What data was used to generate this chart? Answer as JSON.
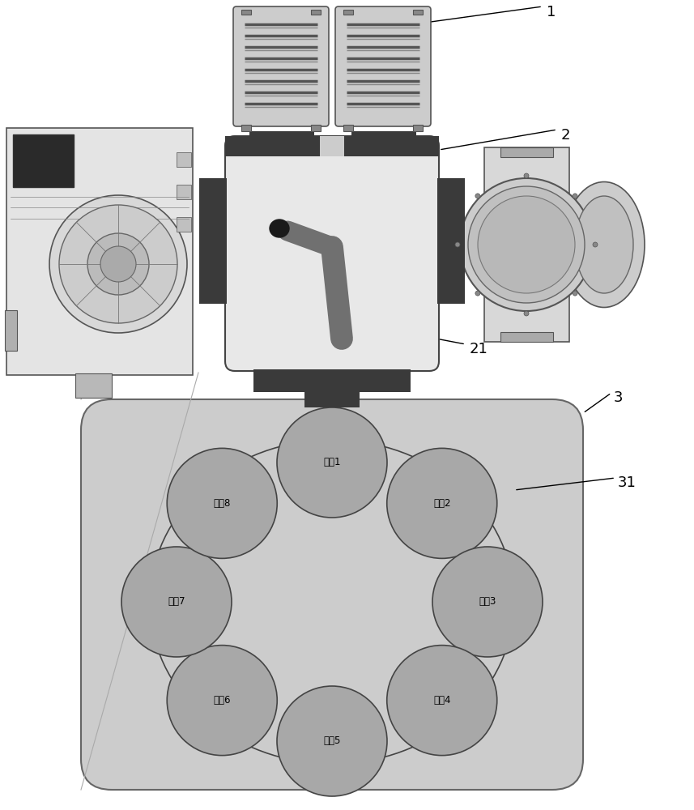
{
  "bg_color": "#ffffff",
  "label_1": "1",
  "label_2": "2",
  "label_3": "3",
  "label_21": "21",
  "label_31": "31",
  "stations": [
    "工位1",
    "工位2",
    "工位3",
    "工位4",
    "工位5",
    "工位6",
    "工位7",
    "工位8"
  ],
  "station_fill": "#a8a8a8",
  "station_edge": "#444444",
  "turntable_bg": "#cccccc",
  "turntable_edge": "#666666",
  "main_box_fill": "#e8e8e8",
  "main_box_edge": "#444444",
  "dark_bar": "#3a3a3a",
  "arm_color": "#707070",
  "cassette_fill": "#cccccc",
  "cassette_edge": "#555555",
  "cassette_line": "#666666",
  "right_eq_fill": "#cccccc",
  "right_eq_edge": "#555555",
  "plasma_fill": "#e0e0e0",
  "plasma_edge": "#888888",
  "orbit_ellipse_fill": "none",
  "orbit_ellipse_edge": "#444444"
}
